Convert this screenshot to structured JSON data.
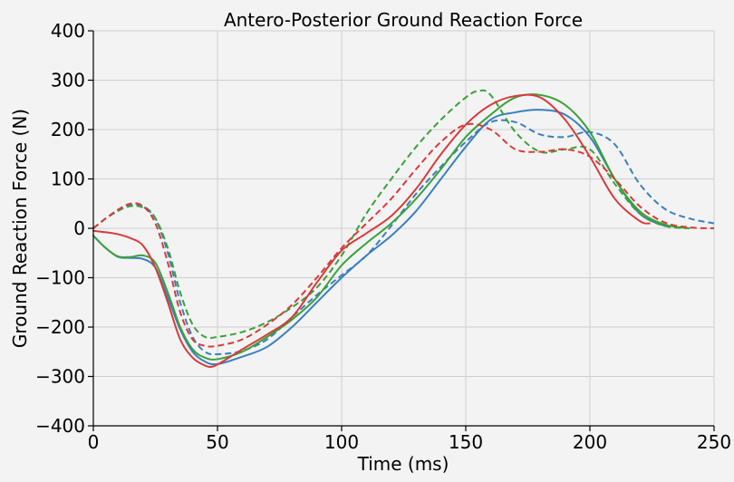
{
  "chart_data": {
    "type": "line",
    "title": "Antero-Posterior Ground Reaction Force",
    "xlabel": "Time (ms)",
    "ylabel": "Ground Reaction Force (N)",
    "xlim": [
      0,
      250
    ],
    "ylim": [
      -400,
      400
    ],
    "xticks": [
      0,
      50,
      100,
      150,
      200,
      250
    ],
    "xtick_labels": [
      "0",
      "50",
      "100",
      "150",
      "200",
      "250"
    ],
    "yticks": [
      -400,
      -300,
      -200,
      -100,
      0,
      100,
      200,
      300,
      400
    ],
    "ytick_labels": [
      "−400",
      "−300",
      "−200",
      "−100",
      "0",
      "100",
      "200",
      "300",
      "400"
    ],
    "grid": true,
    "legend": "none",
    "colors": {
      "blue": "#3a7fbf",
      "green": "#3aa13a",
      "red": "#d83b3b",
      "grid": "#cfcfcf",
      "background": "#f3f3f3"
    },
    "series": [
      {
        "color": "#3a7fbf",
        "style": "solid",
        "x": [
          0,
          5,
          10,
          15,
          20,
          25,
          30,
          35,
          40,
          45,
          50,
          60,
          70,
          80,
          90,
          100,
          110,
          120,
          130,
          140,
          150,
          160,
          170,
          180,
          190,
          200,
          210,
          220,
          230
        ],
        "y": [
          -15,
          -40,
          -58,
          -60,
          -62,
          -80,
          -140,
          -205,
          -250,
          -270,
          -275,
          -260,
          -240,
          -200,
          -150,
          -100,
          -55,
          -15,
          35,
          100,
          165,
          220,
          235,
          240,
          230,
          185,
          100,
          30,
          5
        ]
      },
      {
        "color": "#3a7fbf",
        "style": "dashed",
        "x": [
          0,
          5,
          10,
          15,
          20,
          25,
          30,
          35,
          40,
          45,
          50,
          60,
          70,
          80,
          90,
          100,
          110,
          120,
          130,
          140,
          150,
          160,
          170,
          180,
          190,
          200,
          210,
          220,
          230,
          240,
          250
        ],
        "y": [
          0,
          20,
          35,
          47,
          45,
          20,
          -50,
          -150,
          -220,
          -250,
          -255,
          -248,
          -225,
          -180,
          -135,
          -95,
          -55,
          5,
          70,
          125,
          175,
          215,
          215,
          190,
          185,
          195,
          170,
          90,
          40,
          20,
          10
        ]
      },
      {
        "color": "#3aa13a",
        "style": "solid",
        "x": [
          0,
          5,
          10,
          15,
          20,
          25,
          30,
          35,
          40,
          45,
          50,
          60,
          70,
          80,
          90,
          100,
          110,
          120,
          130,
          140,
          150,
          160,
          170,
          180,
          190,
          200,
          210,
          220,
          230,
          240
        ],
        "y": [
          -15,
          -40,
          -57,
          -58,
          -55,
          -70,
          -130,
          -200,
          -245,
          -262,
          -265,
          -250,
          -220,
          -185,
          -140,
          -75,
          -30,
          10,
          60,
          120,
          185,
          230,
          265,
          270,
          250,
          195,
          100,
          35,
          8,
          0
        ]
      },
      {
        "color": "#3aa13a",
        "style": "dashed",
        "x": [
          0,
          5,
          10,
          15,
          20,
          25,
          30,
          35,
          40,
          45,
          50,
          60,
          70,
          80,
          90,
          100,
          110,
          120,
          130,
          140,
          150,
          155,
          160,
          170,
          180,
          190,
          200,
          210,
          220,
          230,
          240
        ],
        "y": [
          0,
          20,
          36,
          45,
          42,
          20,
          -40,
          -130,
          -195,
          -220,
          -220,
          -210,
          -190,
          -160,
          -120,
          -55,
          30,
          100,
          165,
          220,
          265,
          278,
          270,
          195,
          155,
          160,
          160,
          90,
          30,
          5,
          0
        ]
      },
      {
        "color": "#d83b3b",
        "style": "solid",
        "x": [
          0,
          5,
          10,
          15,
          20,
          25,
          30,
          35,
          40,
          45,
          48,
          52,
          60,
          70,
          80,
          90,
          100,
          110,
          120,
          130,
          140,
          150,
          160,
          170,
          180,
          190,
          200,
          210,
          220,
          224
        ],
        "y": [
          -5,
          -8,
          -12,
          -20,
          -35,
          -80,
          -150,
          -225,
          -262,
          -278,
          -280,
          -270,
          -245,
          -215,
          -180,
          -110,
          -45,
          -10,
          25,
          80,
          150,
          210,
          250,
          268,
          265,
          220,
          145,
          60,
          15,
          10
        ]
      },
      {
        "color": "#d83b3b",
        "style": "dashed",
        "x": [
          0,
          5,
          10,
          15,
          20,
          25,
          30,
          35,
          40,
          45,
          50,
          60,
          70,
          80,
          90,
          100,
          110,
          120,
          130,
          140,
          150,
          160,
          170,
          180,
          190,
          200,
          210,
          220,
          230,
          240,
          250
        ],
        "y": [
          0,
          20,
          38,
          50,
          45,
          10,
          -70,
          -170,
          -225,
          -238,
          -238,
          -225,
          -195,
          -155,
          -100,
          -40,
          10,
          60,
          120,
          175,
          210,
          200,
          160,
          155,
          160,
          145,
          100,
          45,
          12,
          2,
          0
        ]
      }
    ]
  }
}
